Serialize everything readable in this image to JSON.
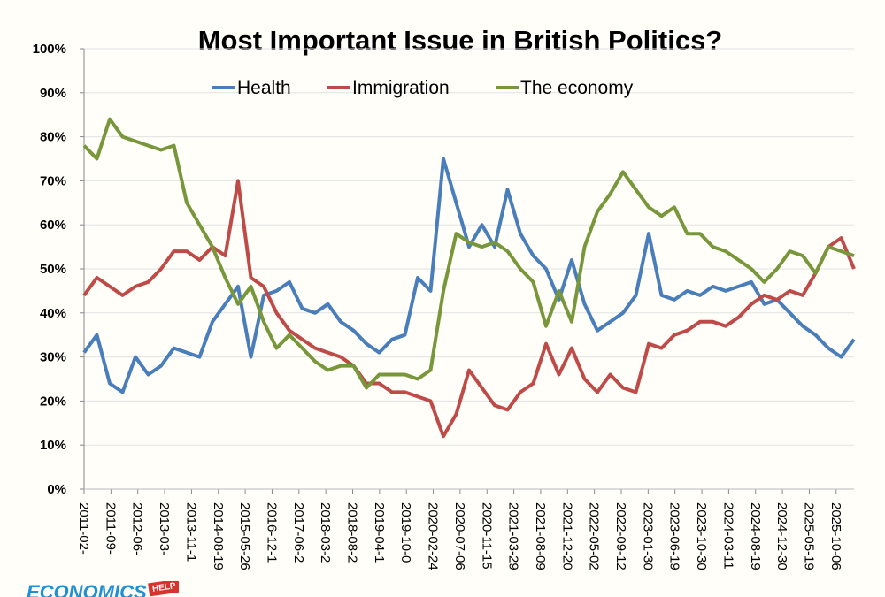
{
  "chart_data": {
    "type": "line",
    "title": "Most Important Issue in British Politics?",
    "xlabel": "",
    "ylabel": "",
    "ylim": [
      0,
      100
    ],
    "yticks": [
      "0%",
      "10%",
      "20%",
      "30%",
      "40%",
      "50%",
      "60%",
      "70%",
      "80%",
      "90%",
      "100%"
    ],
    "grid": true,
    "legend_placement": "top-center",
    "x_tick_labels": [
      "2011-02-",
      "2011-09-",
      "2012-06-",
      "2013-03-",
      "2013-11-1",
      "2014-08-19",
      "2015-05-26",
      "2016-12-1",
      "2017-06-2",
      "2018-03-2",
      "2018-08-2",
      "2019-04-1",
      "2019-10-0",
      "2020-02-24",
      "2020-07-06",
      "2020-11-15",
      "2021-03-29",
      "2021-08-09",
      "2021-12-20",
      "2022-05-02",
      "2022-09-12",
      "2023-01-30",
      "2023-06-19",
      "2023-10-30",
      "2024-03-11",
      "2024-08-19",
      "2024-12-30",
      "2025-05-19",
      "2025-10-06"
    ],
    "series": [
      {
        "name": "Health",
        "color": "#4a7ebb",
        "values": [
          31,
          35,
          24,
          22,
          30,
          26,
          28,
          32,
          31,
          30,
          38,
          42,
          46,
          30,
          44,
          45,
          47,
          41,
          40,
          42,
          38,
          36,
          33,
          31,
          34,
          35,
          48,
          45,
          75,
          65,
          55,
          60,
          55,
          68,
          58,
          53,
          50,
          43,
          52,
          42,
          36,
          38,
          40,
          44,
          58,
          44,
          43,
          45,
          44,
          46,
          45,
          46,
          47,
          42,
          43,
          40,
          37,
          35,
          32,
          30,
          34
        ]
      },
      {
        "name": "Immigration",
        "color": "#be4b48",
        "values": [
          44,
          48,
          46,
          44,
          46,
          47,
          50,
          54,
          54,
          52,
          55,
          53,
          70,
          48,
          46,
          40,
          36,
          34,
          32,
          31,
          30,
          28,
          24,
          24,
          22,
          22,
          21,
          20,
          12,
          17,
          27,
          23,
          19,
          18,
          22,
          24,
          33,
          26,
          32,
          25,
          22,
          26,
          23,
          22,
          33,
          32,
          35,
          36,
          38,
          38,
          37,
          39,
          42,
          44,
          43,
          45,
          44,
          49,
          55,
          57,
          50
        ]
      },
      {
        "name": "The economy",
        "color": "#78973b",
        "values": [
          78,
          75,
          84,
          80,
          79,
          78,
          77,
          78,
          65,
          60,
          55,
          48,
          42,
          46,
          38,
          32,
          35,
          32,
          29,
          27,
          28,
          28,
          23,
          26,
          26,
          26,
          25,
          27,
          45,
          58,
          56,
          55,
          56,
          54,
          50,
          47,
          37,
          45,
          38,
          55,
          63,
          67,
          72,
          68,
          64,
          62,
          64,
          58,
          58,
          55,
          54,
          52,
          50,
          47,
          50,
          54,
          53,
          49,
          55,
          54,
          53
        ]
      }
    ]
  },
  "logo": {
    "text": "ECONOMICS",
    "badge": "HELP"
  }
}
